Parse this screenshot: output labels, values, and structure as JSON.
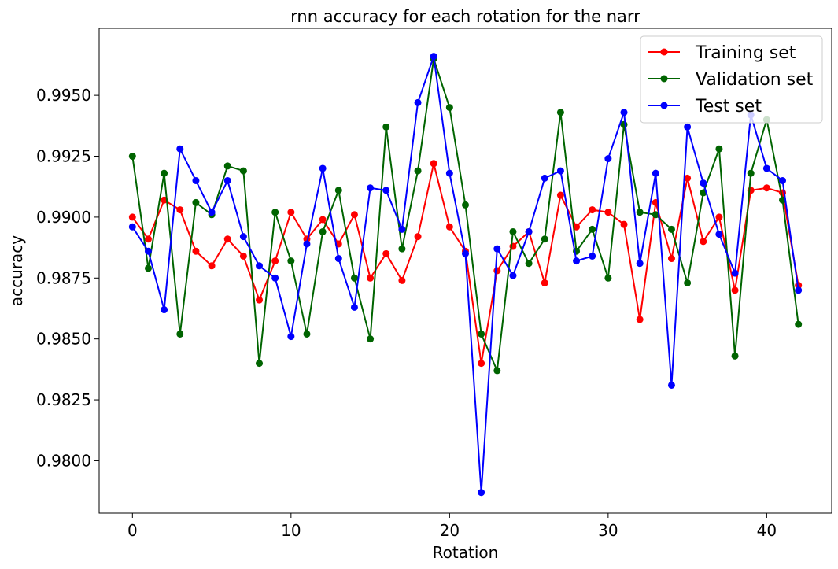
{
  "chart_data": {
    "type": "line",
    "title": "rnn accuracy for each rotation for the narr",
    "xlabel": "Rotation",
    "ylabel": "accuracy",
    "xlim": [
      -2.1,
      44.1
    ],
    "ylim": [
      0.97785,
      0.99775
    ],
    "x_ticks": [
      0,
      10,
      20,
      30,
      40
    ],
    "x_tick_labels": [
      "0",
      "10",
      "20",
      "30",
      "40"
    ],
    "y_ticks": [
      0.98,
      0.9825,
      0.985,
      0.9875,
      0.99,
      0.9925,
      0.995
    ],
    "y_tick_labels": [
      "0.9800",
      "0.9825",
      "0.9850",
      "0.9875",
      "0.9900",
      "0.9925",
      "0.9950"
    ],
    "grid": false,
    "legend_position": "top-right",
    "x": [
      0,
      1,
      2,
      3,
      4,
      5,
      6,
      7,
      8,
      9,
      10,
      11,
      12,
      13,
      14,
      15,
      16,
      17,
      18,
      19,
      20,
      21,
      22,
      23,
      24,
      25,
      26,
      27,
      28,
      29,
      30,
      31,
      32,
      33,
      34,
      35,
      36,
      37,
      38,
      39,
      40,
      41,
      42
    ],
    "series": [
      {
        "name": "Training set",
        "color": "#ff0000",
        "values": [
          0.99,
          0.9891,
          0.9907,
          0.9903,
          0.9886,
          0.988,
          0.9891,
          0.9884,
          0.9866,
          0.9882,
          0.9902,
          0.9891,
          0.9899,
          0.9889,
          0.9901,
          0.9875,
          0.9885,
          0.9874,
          0.9892,
          0.9922,
          0.9896,
          0.9886,
          0.984,
          0.9878,
          0.9888,
          0.9894,
          0.9873,
          0.9909,
          0.9896,
          0.9903,
          0.9902,
          0.9897,
          0.9858,
          0.9906,
          0.9883,
          0.9916,
          0.989,
          0.99,
          0.987,
          0.9911,
          0.9912,
          0.991,
          0.9872
        ]
      },
      {
        "name": "Validation set",
        "color": "#006400",
        "values": [
          0.9925,
          0.9879,
          0.9918,
          0.9852,
          0.9906,
          0.9901,
          0.9921,
          0.9919,
          0.984,
          0.9902,
          0.9882,
          0.9852,
          0.9894,
          0.9911,
          0.9875,
          0.985,
          0.9937,
          0.9887,
          0.9919,
          0.9965,
          0.9945,
          0.9905,
          0.9852,
          0.9837,
          0.9894,
          0.9881,
          0.9891,
          0.9943,
          0.9886,
          0.9895,
          0.9875,
          0.9938,
          0.9902,
          0.9901,
          0.9895,
          0.9873,
          0.991,
          0.9928,
          0.9843,
          0.9918,
          0.994,
          0.9907,
          0.9856
        ]
      },
      {
        "name": "Test set",
        "color": "#0000ff",
        "values": [
          0.9896,
          0.9886,
          0.9862,
          0.9928,
          0.9915,
          0.9902,
          0.9915,
          0.9892,
          0.988,
          0.9875,
          0.9851,
          0.9889,
          0.992,
          0.9883,
          0.9863,
          0.9912,
          0.9911,
          0.9895,
          0.9947,
          0.9966,
          0.9918,
          0.9885,
          0.9787,
          0.9887,
          0.9876,
          0.9894,
          0.9916,
          0.9919,
          0.9882,
          0.9884,
          0.9924,
          0.9943,
          0.9881,
          0.9918,
          0.9831,
          0.9937,
          0.9914,
          0.9893,
          0.9877,
          0.9942,
          0.992,
          0.9915,
          0.987
        ]
      }
    ]
  }
}
